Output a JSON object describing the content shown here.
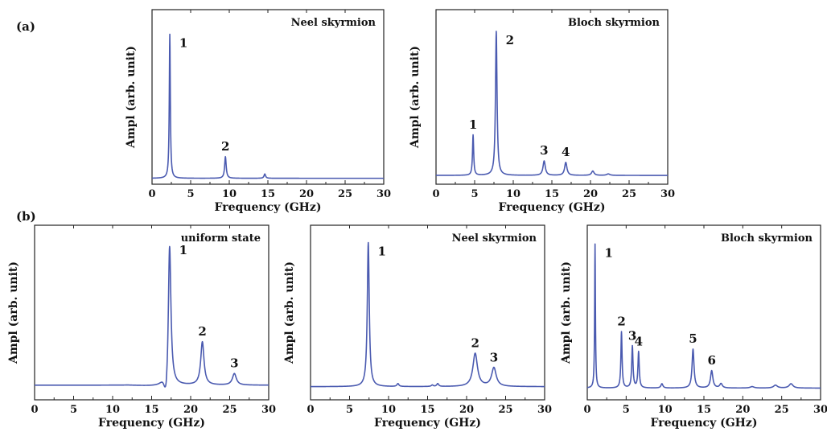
{
  "panel_tags": [
    "(a)",
    "(b)"
  ],
  "colors": {
    "line": "#4a5ab0"
  },
  "chart_data": [
    {
      "type": "line",
      "group": "(a)",
      "title": "Neel skyrmion",
      "xlabel": "Frequency (GHz)",
      "ylabel": "Ampl (arb. unit)",
      "xlim": [
        0,
        30
      ],
      "ylim": [
        0,
        1.1
      ],
      "xticks": [
        0,
        5,
        10,
        15,
        20,
        25,
        30
      ],
      "baseline": 0.03,
      "peaks": [
        {
          "label": "1",
          "x": 2.3,
          "y": 1.0,
          "width": 0.08
        },
        {
          "label": "2",
          "x": 9.5,
          "y": 0.15,
          "width": 0.12
        },
        {
          "label": "",
          "x": 14.6,
          "y": 0.03,
          "width": 0.12
        }
      ]
    },
    {
      "type": "line",
      "group": "(a)",
      "title": "Bloch skyrmion",
      "xlabel": "Frequency (GHz)",
      "ylabel": "Ampl (arb. unit)",
      "xlim": [
        0,
        30
      ],
      "ylim": [
        0,
        1.1
      ],
      "xticks": [
        0,
        5,
        10,
        15,
        20,
        25,
        30
      ],
      "baseline": 0.05,
      "peaks": [
        {
          "label": "1",
          "x": 4.8,
          "y": 0.28,
          "width": 0.09
        },
        {
          "label": "2",
          "x": 7.8,
          "y": 1.0,
          "width": 0.12
        },
        {
          "label": "3",
          "x": 14.0,
          "y": 0.1,
          "width": 0.18
        },
        {
          "label": "4",
          "x": 16.8,
          "y": 0.09,
          "width": 0.18
        },
        {
          "label": "",
          "x": 20.3,
          "y": 0.03,
          "width": 0.2
        },
        {
          "label": "",
          "x": 22.3,
          "y": 0.01,
          "width": 0.25
        }
      ]
    },
    {
      "type": "line",
      "group": "(b)",
      "title": "uniform state",
      "xlabel": "Frequency (GHz)",
      "ylabel": "Ampl (arb. unit)",
      "xlim": [
        0,
        30
      ],
      "ylim": [
        0,
        1.1
      ],
      "xticks": [
        0,
        5,
        10,
        15,
        20,
        25,
        30
      ],
      "baseline": 0.09,
      "dip": {
        "x": 16.9,
        "y": -0.05
      },
      "peaks": [
        {
          "label": "1",
          "x": 17.3,
          "y": 1.0,
          "width": 0.2
        },
        {
          "label": "2",
          "x": 21.5,
          "y": 0.3,
          "width": 0.25
        },
        {
          "label": "3",
          "x": 25.6,
          "y": 0.08,
          "width": 0.3
        }
      ]
    },
    {
      "type": "line",
      "group": "(b)",
      "title": "Neel skyrmion",
      "xlabel": "Frequency (GHz)",
      "ylabel": "Ampl (arb. unit)",
      "xlim": [
        0,
        30
      ],
      "ylim": [
        0,
        1.1
      ],
      "xticks": [
        0,
        5,
        10,
        15,
        20,
        25,
        30
      ],
      "baseline": 0.08,
      "peaks": [
        {
          "label": "1",
          "x": 7.4,
          "y": 1.0,
          "width": 0.15
        },
        {
          "label": "",
          "x": 11.2,
          "y": 0.02,
          "width": 0.15
        },
        {
          "label": "",
          "x": 15.6,
          "y": 0.01,
          "width": 0.15
        },
        {
          "label": "",
          "x": 16.3,
          "y": 0.02,
          "width": 0.15
        },
        {
          "label": "2",
          "x": 21.1,
          "y": 0.23,
          "width": 0.35
        },
        {
          "label": "3",
          "x": 23.5,
          "y": 0.13,
          "width": 0.35
        }
      ]
    },
    {
      "type": "line",
      "group": "(b)",
      "title": "Bloch skyrmion",
      "xlabel": "Frequency (GHz)",
      "ylabel": "Ampl (arb. unit)",
      "xlim": [
        0,
        30
      ],
      "ylim": [
        0,
        1.1
      ],
      "xticks": [
        0,
        5,
        10,
        15,
        20,
        25,
        30
      ],
      "baseline": 0.07,
      "peaks": [
        {
          "label": "1",
          "x": 1.0,
          "y": 1.0,
          "width": 0.06
        },
        {
          "label": "2",
          "x": 4.4,
          "y": 0.39,
          "width": 0.09
        },
        {
          "label": "3",
          "x": 5.8,
          "y": 0.29,
          "width": 0.1
        },
        {
          "label": "4",
          "x": 6.6,
          "y": 0.25,
          "width": 0.1
        },
        {
          "label": "",
          "x": 9.6,
          "y": 0.03,
          "width": 0.15
        },
        {
          "label": "5",
          "x": 13.6,
          "y": 0.27,
          "width": 0.15
        },
        {
          "label": "6",
          "x": 16.0,
          "y": 0.12,
          "width": 0.18
        },
        {
          "label": "",
          "x": 17.2,
          "y": 0.03,
          "width": 0.2
        },
        {
          "label": "",
          "x": 21.2,
          "y": 0.01,
          "width": 0.3
        },
        {
          "label": "",
          "x": 24.2,
          "y": 0.02,
          "width": 0.3
        },
        {
          "label": "",
          "x": 26.2,
          "y": 0.03,
          "width": 0.3
        }
      ]
    }
  ]
}
